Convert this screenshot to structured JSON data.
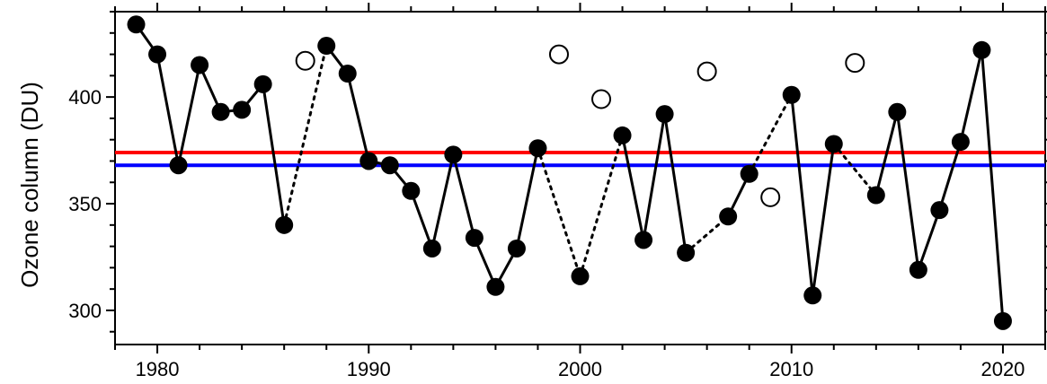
{
  "chart_data": {
    "type": "line",
    "xlabel": "",
    "ylabel": "Ozone column (DU)",
    "xlim": [
      1978,
      2022
    ],
    "ylim": [
      284,
      440
    ],
    "x_ticks": [
      1980,
      1990,
      2000,
      2010,
      2020
    ],
    "y_ticks": [
      300,
      350,
      400
    ],
    "grid": false,
    "series": [
      {
        "style": "filled-circles-solid-line",
        "points": [
          [
            1979,
            434
          ],
          [
            1980,
            420
          ],
          [
            1981,
            368
          ],
          [
            1982,
            415
          ],
          [
            1983,
            393
          ],
          [
            1984,
            394
          ],
          [
            1985,
            406
          ],
          [
            1986,
            340
          ],
          [
            1988,
            424
          ],
          [
            1989,
            411
          ],
          [
            1990,
            370
          ],
          [
            1991,
            368
          ],
          [
            1992,
            356
          ],
          [
            1993,
            329
          ],
          [
            1994,
            373
          ],
          [
            1995,
            334
          ],
          [
            1996,
            311
          ],
          [
            1997,
            329
          ],
          [
            1998,
            376
          ],
          [
            2000,
            316
          ],
          [
            2002,
            382
          ],
          [
            2003,
            333
          ],
          [
            2004,
            392
          ],
          [
            2005,
            327
          ],
          [
            2007,
            344
          ],
          [
            2008,
            364
          ],
          [
            2010,
            401
          ],
          [
            2011,
            307
          ],
          [
            2012,
            378
          ],
          [
            2014,
            354
          ],
          [
            2015,
            393
          ],
          [
            2016,
            319
          ],
          [
            2017,
            347
          ],
          [
            2018,
            379
          ],
          [
            2019,
            422
          ],
          [
            2020,
            295
          ]
        ]
      },
      {
        "style": "open-circles",
        "points": [
          [
            1987,
            417
          ],
          [
            1999,
            420
          ],
          [
            2001,
            399
          ],
          [
            2006,
            412
          ],
          [
            2009,
            353
          ],
          [
            2013,
            416
          ]
        ]
      }
    ],
    "gap_links": [
      [
        [
          1986,
          340
        ],
        [
          1988,
          424
        ]
      ],
      [
        [
          1998,
          376
        ],
        [
          2000,
          316
        ]
      ],
      [
        [
          2000,
          316
        ],
        [
          2002,
          382
        ]
      ],
      [
        [
          2005,
          327
        ],
        [
          2007,
          344
        ]
      ],
      [
        [
          2008,
          364
        ],
        [
          2010,
          401
        ]
      ],
      [
        [
          2012,
          378
        ],
        [
          2014,
          354
        ]
      ]
    ],
    "reference_lines": [
      {
        "y": 374,
        "color": "#ff0000"
      },
      {
        "y": 368,
        "color": "#0000ff"
      }
    ],
    "colors": {
      "line": "#000000",
      "marker": "#000000",
      "open_marker_fill": "#ffffff"
    }
  }
}
